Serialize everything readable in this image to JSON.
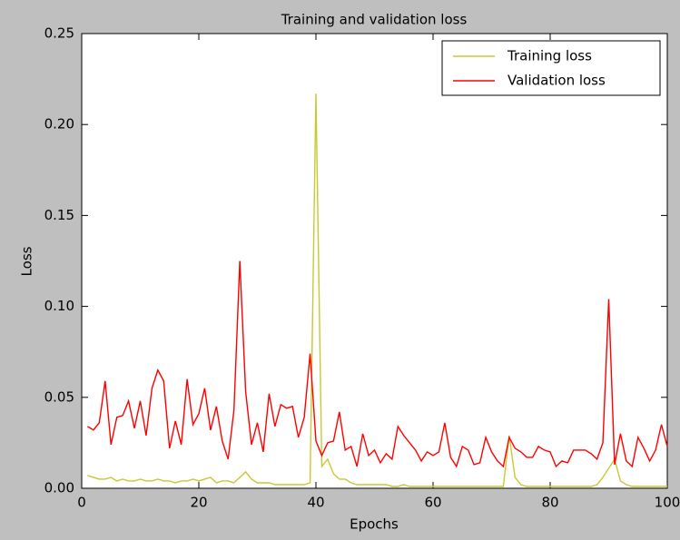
{
  "chart_data": {
    "type": "line",
    "title": "Training and validation loss",
    "x_label": "Epochs",
    "y_label": "Loss",
    "x": [
      1,
      2,
      3,
      4,
      5,
      6,
      7,
      8,
      9,
      10,
      11,
      12,
      13,
      14,
      15,
      16,
      17,
      18,
      19,
      20,
      21,
      22,
      23,
      24,
      25,
      26,
      27,
      28,
      29,
      30,
      31,
      32,
      33,
      34,
      35,
      36,
      37,
      38,
      39,
      40,
      41,
      42,
      43,
      44,
      45,
      46,
      47,
      48,
      49,
      50,
      51,
      52,
      53,
      54,
      55,
      56,
      57,
      58,
      59,
      60,
      61,
      62,
      63,
      64,
      65,
      66,
      67,
      68,
      69,
      70,
      71,
      72,
      73,
      74,
      75,
      76,
      77,
      78,
      79,
      80,
      81,
      82,
      83,
      84,
      85,
      86,
      87,
      88,
      89,
      90,
      91,
      92,
      93,
      94,
      95,
      96,
      97,
      98,
      99,
      100
    ],
    "series": [
      {
        "name": "Training loss",
        "color": "#c8c832",
        "values": [
          0.007,
          0.006,
          0.005,
          0.005,
          0.006,
          0.004,
          0.005,
          0.004,
          0.004,
          0.005,
          0.004,
          0.004,
          0.005,
          0.004,
          0.004,
          0.003,
          0.004,
          0.004,
          0.005,
          0.004,
          0.005,
          0.006,
          0.003,
          0.004,
          0.004,
          0.003,
          0.006,
          0.009,
          0.005,
          0.003,
          0.003,
          0.003,
          0.002,
          0.002,
          0.002,
          0.002,
          0.002,
          0.002,
          0.003,
          0.217,
          0.012,
          0.016,
          0.008,
          0.005,
          0.005,
          0.003,
          0.002,
          0.002,
          0.002,
          0.002,
          0.002,
          0.002,
          0.001,
          0.001,
          0.002,
          0.001,
          0.001,
          0.001,
          0.001,
          0.001,
          0.001,
          0.001,
          0.001,
          0.001,
          0.001,
          0.001,
          0.001,
          0.001,
          0.001,
          0.001,
          0.001,
          0.001,
          0.029,
          0.006,
          0.002,
          0.001,
          0.001,
          0.001,
          0.001,
          0.001,
          0.001,
          0.001,
          0.001,
          0.001,
          0.001,
          0.001,
          0.001,
          0.002,
          0.006,
          0.011,
          0.016,
          0.004,
          0.002,
          0.001,
          0.001,
          0.001,
          0.001,
          0.001,
          0.001,
          0.001
        ]
      },
      {
        "name": "Validation loss",
        "color": "#ff0000",
        "values": [
          0.034,
          0.032,
          0.036,
          0.059,
          0.024,
          0.039,
          0.04,
          0.048,
          0.033,
          0.048,
          0.029,
          0.055,
          0.065,
          0.059,
          0.022,
          0.037,
          0.024,
          0.06,
          0.035,
          0.041,
          0.055,
          0.032,
          0.045,
          0.026,
          0.016,
          0.043,
          0.125,
          0.053,
          0.024,
          0.036,
          0.02,
          0.052,
          0.034,
          0.046,
          0.044,
          0.045,
          0.028,
          0.039,
          0.074,
          0.026,
          0.018,
          0.025,
          0.026,
          0.042,
          0.021,
          0.023,
          0.012,
          0.03,
          0.018,
          0.021,
          0.014,
          0.019,
          0.016,
          0.034,
          0.029,
          0.025,
          0.021,
          0.015,
          0.02,
          0.018,
          0.02,
          0.036,
          0.017,
          0.012,
          0.023,
          0.021,
          0.013,
          0.014,
          0.028,
          0.02,
          0.015,
          0.012,
          0.028,
          0.022,
          0.02,
          0.017,
          0.017,
          0.023,
          0.021,
          0.02,
          0.012,
          0.015,
          0.014,
          0.021,
          0.021,
          0.021,
          0.019,
          0.016,
          0.025,
          0.104,
          0.013,
          0.03,
          0.015,
          0.012,
          0.028,
          0.022,
          0.015,
          0.021,
          0.035,
          0.023
        ]
      }
    ],
    "xlim": [
      0,
      100
    ],
    "xticks": [
      0,
      20,
      40,
      60,
      80,
      100
    ],
    "ylim": [
      0,
      0.25
    ],
    "yticks": [
      {
        "value": 0,
        "label": "0.00"
      },
      {
        "value": 0.05,
        "label": "0.05"
      },
      {
        "value": 0.1,
        "label": "0.10"
      },
      {
        "value": 0.15,
        "label": "0.15"
      },
      {
        "value": 0.2,
        "label": "0.20"
      },
      {
        "value": 0.25,
        "label": "0.25"
      }
    ],
    "legend": "upper right"
  }
}
